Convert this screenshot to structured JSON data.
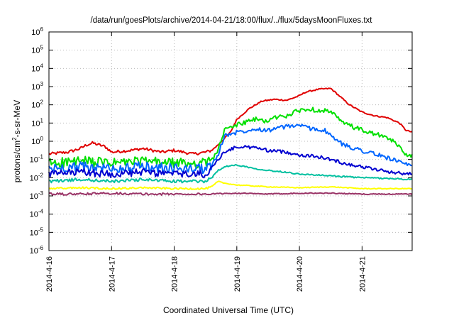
{
  "chart_data": {
    "type": "line",
    "title": "/data/run/goesPlots/archive/2014-04-21/18:00/flux/../flux/5daysMoonFluxes.txt",
    "xlabel": "Coordinated Universal Time (UTC)",
    "ylabel_base": "protons/cm",
    "ylabel_sup": "2",
    "ylabel_rest": "-s-sr-MeV",
    "yscale": "log",
    "ylim": [
      -6,
      6
    ],
    "xlim": [
      0,
      5.8
    ],
    "grid": true,
    "legend": "none",
    "x_ticks": [
      {
        "x": 0,
        "label": "2014-4-16"
      },
      {
        "x": 1,
        "label": "2014-4-17"
      },
      {
        "x": 2,
        "label": "2014-4-18"
      },
      {
        "x": 3,
        "label": "2014-4-19"
      },
      {
        "x": 4,
        "label": "2014-4-20"
      },
      {
        "x": 5,
        "label": "2014-4-21"
      }
    ],
    "y_ticks": [
      {
        "exp": 6,
        "base": "10",
        "sup": "6"
      },
      {
        "exp": 5,
        "base": "10",
        "sup": "5"
      },
      {
        "exp": 4,
        "base": "10",
        "sup": "4"
      },
      {
        "exp": 3,
        "base": "10",
        "sup": "3"
      },
      {
        "exp": 2,
        "base": "10",
        "sup": "2"
      },
      {
        "exp": 1,
        "base": "10",
        "sup": "1"
      },
      {
        "exp": 0,
        "base": "10",
        "sup": "0"
      },
      {
        "exp": -1,
        "base": "10",
        "sup": "-1"
      },
      {
        "exp": -2,
        "base": "10",
        "sup": "-2"
      },
      {
        "exp": -3,
        "base": "10",
        "sup": "-3"
      },
      {
        "exp": -4,
        "base": "10",
        "sup": "-4"
      },
      {
        "exp": -5,
        "base": "10",
        "sup": "-5"
      },
      {
        "exp": -6,
        "base": "10",
        "sup": "-6"
      }
    ],
    "series": [
      {
        "color": "#e00000",
        "noise": 0.08,
        "x": [
          0,
          0.3,
          0.5,
          0.6,
          0.7,
          0.8,
          0.9,
          1.0,
          1.3,
          1.5,
          1.8,
          2.0,
          2.3,
          2.5,
          2.6,
          2.7,
          2.9,
          3.0,
          3.2,
          3.4,
          3.6,
          3.8,
          4.0,
          4.1,
          4.3,
          4.5,
          4.6,
          4.8,
          5.0,
          5.2,
          5.4,
          5.6,
          5.7,
          5.8
        ],
        "y": [
          -0.7,
          -0.6,
          -0.4,
          -0.2,
          -0.1,
          -0.2,
          -0.3,
          -0.6,
          -0.5,
          -0.4,
          -0.6,
          -0.5,
          -0.7,
          -0.6,
          -0.5,
          -0.2,
          0.5,
          1.2,
          1.8,
          2.2,
          2.3,
          2.25,
          2.5,
          2.7,
          2.85,
          2.9,
          2.6,
          2.0,
          1.6,
          1.4,
          1.3,
          1.0,
          0.6,
          0.5
        ]
      },
      {
        "color": "#00e000",
        "noise": 0.28,
        "x": [
          0,
          0.5,
          1.0,
          1.5,
          2.0,
          2.5,
          2.6,
          2.7,
          2.8,
          3.0,
          3.3,
          3.5,
          3.6,
          3.8,
          4.0,
          4.1,
          4.4,
          4.5,
          4.7,
          5.0,
          5.3,
          5.5,
          5.7,
          5.8
        ],
        "y": [
          -1.2,
          -1.1,
          -1.2,
          -1.1,
          -1.2,
          -1.2,
          -1.0,
          -0.5,
          0.6,
          0.9,
          1.2,
          1.1,
          1.3,
          1.4,
          1.7,
          1.75,
          1.7,
          1.6,
          1.0,
          0.6,
          0.3,
          0.0,
          -0.7,
          -0.8
        ]
      },
      {
        "color": "#0066ff",
        "noise": 0.28,
        "x": [
          0,
          0.5,
          1.0,
          1.5,
          2.0,
          2.5,
          2.6,
          2.7,
          2.8,
          3.0,
          3.3,
          3.5,
          3.6,
          3.8,
          4.0,
          4.1,
          4.4,
          4.5,
          4.7,
          5.0,
          5.3,
          5.5,
          5.7,
          5.8
        ],
        "y": [
          -1.5,
          -1.4,
          -1.5,
          -1.4,
          -1.5,
          -1.5,
          -1.3,
          -0.8,
          0.3,
          0.5,
          0.7,
          0.6,
          0.7,
          0.8,
          0.9,
          0.75,
          0.6,
          0.3,
          -0.2,
          -0.5,
          -0.8,
          -1.0,
          -1.3,
          -1.4
        ]
      },
      {
        "color": "#0000d0",
        "noise": 0.2,
        "x": [
          0,
          0.5,
          1.0,
          1.5,
          2.0,
          2.5,
          2.6,
          2.7,
          2.8,
          3.0,
          3.3,
          3.5,
          3.8,
          4.0,
          4.3,
          4.5,
          4.7,
          5.0,
          5.3,
          5.6,
          5.8
        ],
        "y": [
          -1.8,
          -1.7,
          -1.8,
          -1.7,
          -1.8,
          -1.8,
          -1.5,
          -1.0,
          -0.6,
          -0.3,
          -0.35,
          -0.5,
          -0.6,
          -0.75,
          -0.85,
          -1.0,
          -1.2,
          -1.4,
          -1.6,
          -1.75,
          -1.8
        ]
      },
      {
        "color": "#00c0a0",
        "noise": 0.08,
        "x": [
          0,
          0.5,
          1.0,
          1.5,
          2.0,
          2.5,
          2.6,
          2.7,
          2.8,
          3.0,
          3.3,
          3.5,
          3.8,
          4.0,
          4.5,
          5.0,
          5.5,
          5.8
        ],
        "y": [
          -2.2,
          -2.1,
          -2.2,
          -2.1,
          -2.2,
          -2.2,
          -2.0,
          -1.6,
          -1.4,
          -1.3,
          -1.5,
          -1.6,
          -1.7,
          -1.8,
          -1.9,
          -2.0,
          -2.05,
          -2.1
        ]
      },
      {
        "color": "#ffff00",
        "noise": 0.05,
        "x": [
          0,
          0.5,
          1.0,
          1.5,
          2.0,
          2.5,
          2.6,
          2.7,
          2.8,
          3.0,
          3.5,
          4.0,
          4.5,
          5.0,
          5.5,
          5.8
        ],
        "y": [
          -2.6,
          -2.55,
          -2.6,
          -2.55,
          -2.6,
          -2.6,
          -2.5,
          -2.2,
          -2.3,
          -2.4,
          -2.5,
          -2.55,
          -2.5,
          -2.6,
          -2.6,
          -2.6
        ]
      },
      {
        "color": "#993366",
        "noise": 0.06,
        "x": [
          0,
          0.5,
          1.0,
          1.5,
          2.0,
          2.5,
          3.0,
          3.5,
          4.0,
          4.5,
          5.0,
          5.5,
          5.8
        ],
        "y": [
          -2.9,
          -2.9,
          -2.85,
          -2.9,
          -2.9,
          -2.9,
          -2.85,
          -2.9,
          -2.85,
          -2.85,
          -2.9,
          -2.9,
          -2.9
        ]
      }
    ]
  }
}
